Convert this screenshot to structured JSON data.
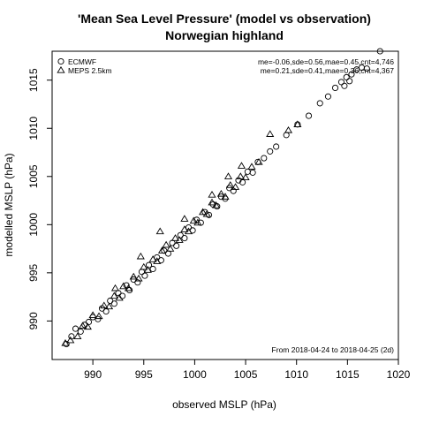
{
  "chart_data": {
    "type": "scatter",
    "title": "'Mean Sea Level Pressure' (model vs observation)",
    "subtitle": "Norwegian highland",
    "xlabel": "observed MSLP (hPa)",
    "ylabel": "modelled MSLP (hPa)",
    "xlim": [
      986,
      1020
    ],
    "ylim": [
      986,
      1018
    ],
    "x_ticks": [
      990,
      995,
      1000,
      1005,
      1010,
      1015,
      1020
    ],
    "y_ticks": [
      990,
      995,
      1000,
      1005,
      1010,
      1015
    ],
    "grid": false,
    "legend_position": "top-left",
    "series": [
      {
        "name": "ECMWF",
        "marker": "circle",
        "stats": "me=-0.06,sde=0.56,mae=0.45,cnt=4,746",
        "points": [
          [
            987.4,
            987.6
          ],
          [
            987.9,
            988.4
          ],
          [
            988.3,
            989.2
          ],
          [
            988.8,
            988.9
          ],
          [
            989.2,
            989.6
          ],
          [
            989.6,
            989.9
          ],
          [
            990.0,
            990.4
          ],
          [
            990.5,
            990.2
          ],
          [
            990.9,
            991.3
          ],
          [
            991.3,
            991.0
          ],
          [
            991.7,
            992.1
          ],
          [
            992.1,
            991.8
          ],
          [
            992.5,
            992.9
          ],
          [
            992.9,
            992.6
          ],
          [
            993.3,
            993.7
          ],
          [
            993.6,
            993.2
          ],
          [
            994.0,
            994.3
          ],
          [
            994.4,
            994.0
          ],
          [
            994.8,
            995.1
          ],
          [
            995.1,
            994.7
          ],
          [
            995.5,
            995.8
          ],
          [
            995.9,
            995.4
          ],
          [
            996.3,
            996.6
          ],
          [
            996.7,
            996.3
          ],
          [
            997.0,
            997.3
          ],
          [
            997.4,
            997.0
          ],
          [
            997.8,
            998.1
          ],
          [
            998.2,
            997.8
          ],
          [
            998.6,
            998.9
          ],
          [
            999.0,
            998.6
          ],
          [
            999.4,
            999.7
          ],
          [
            999.8,
            999.4
          ],
          [
            1000.2,
            1000.5
          ],
          [
            1000.6,
            1000.2
          ],
          [
            1001.0,
            1001.3
          ],
          [
            1001.4,
            1001.0
          ],
          [
            1001.8,
            1002.1
          ],
          [
            1002.2,
            1001.9
          ],
          [
            1002.6,
            1002.9
          ],
          [
            1003.0,
            1002.7
          ],
          [
            1003.4,
            1003.8
          ],
          [
            1003.8,
            1003.5
          ],
          [
            1004.3,
            1004.6
          ],
          [
            1004.7,
            1004.4
          ],
          [
            1005.2,
            1005.5
          ],
          [
            1005.7,
            1005.4
          ],
          [
            1006.2,
            1006.5
          ],
          [
            1006.8,
            1006.9
          ],
          [
            1007.4,
            1007.6
          ],
          [
            1008.0,
            1008.1
          ],
          [
            1009.0,
            1009.3
          ],
          [
            1010.1,
            1010.4
          ],
          [
            1011.2,
            1011.3
          ],
          [
            1012.3,
            1012.6
          ],
          [
            1013.1,
            1013.3
          ],
          [
            1013.8,
            1014.2
          ],
          [
            1014.4,
            1014.8
          ],
          [
            1014.9,
            1015.3
          ],
          [
            1015.4,
            1015.6
          ],
          [
            1015.9,
            1016.1
          ],
          [
            1016.4,
            1016.3
          ],
          [
            1016.9,
            1016.2
          ],
          [
            1014.7,
            1014.4
          ],
          [
            1015.2,
            1014.9
          ],
          [
            1018.2,
            1018.0
          ]
        ]
      },
      {
        "name": "MEPS 2.5km",
        "marker": "triangle",
        "stats": "me=0.21,sde=0.41,mae=0.36,cnt=4,367",
        "points": [
          [
            987.3,
            987.7
          ],
          [
            987.8,
            988.0
          ],
          [
            988.5,
            988.4
          ],
          [
            989.0,
            989.5
          ],
          [
            989.5,
            989.4
          ],
          [
            990.0,
            990.6
          ],
          [
            990.6,
            990.5
          ],
          [
            991.1,
            991.6
          ],
          [
            991.6,
            991.5
          ],
          [
            992.1,
            992.6
          ],
          [
            992.6,
            992.4
          ],
          [
            993.0,
            993.6
          ],
          [
            993.5,
            993.4
          ],
          [
            994.0,
            994.6
          ],
          [
            994.5,
            994.4
          ],
          [
            995.0,
            995.6
          ],
          [
            995.4,
            995.3
          ],
          [
            995.9,
            996.4
          ],
          [
            996.3,
            996.2
          ],
          [
            996.8,
            997.3
          ],
          [
            997.2,
            997.9
          ],
          [
            997.6,
            997.5
          ],
          [
            998.1,
            998.6
          ],
          [
            998.5,
            998.4
          ],
          [
            999.0,
            999.5
          ],
          [
            999.4,
            999.3
          ],
          [
            999.9,
            1000.4
          ],
          [
            1000.3,
            1000.2
          ],
          [
            1000.8,
            1001.3
          ],
          [
            1001.2,
            1001.1
          ],
          [
            1001.7,
            1002.3
          ],
          [
            1002.1,
            1002.0
          ],
          [
            1002.6,
            1003.2
          ],
          [
            1003.0,
            1002.9
          ],
          [
            1003.5,
            1004.1
          ],
          [
            1004.0,
            1003.9
          ],
          [
            1004.5,
            1005.0
          ],
          [
            1005.0,
            1004.9
          ],
          [
            1005.6,
            1006.0
          ],
          [
            1006.3,
            1006.5
          ],
          [
            996.6,
            999.3
          ],
          [
            994.7,
            996.7
          ],
          [
            992.2,
            993.4
          ],
          [
            1001.7,
            1003.1
          ],
          [
            1003.3,
            1005.0
          ],
          [
            1007.4,
            1009.4
          ],
          [
            1009.2,
            1009.8
          ],
          [
            1004.6,
            1006.1
          ],
          [
            999.0,
            1000.6
          ],
          [
            1010.1,
            1010.4
          ]
        ]
      }
    ],
    "annotation": "From 2018-04-24 to 2018-04-25 (2d)"
  }
}
